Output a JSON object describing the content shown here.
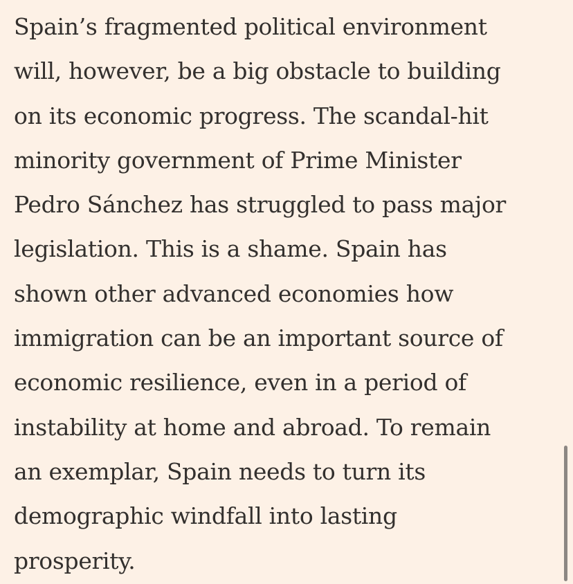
{
  "article": {
    "lines": [
      "Spain’s fragmented political environment",
      "will, however, be a big obstacle to building",
      "on its economic progress. The scandal-hit",
      "minority government of Prime Minister",
      "Pedro Sánchez has struggled to pass major",
      "legislation. This is a shame. Spain has",
      "shown other advanced economies how",
      "immigration can be an important source of",
      "economic resilience, even in a period of",
      "instability at home and abroad. To remain",
      "an exemplar, Spain needs to turn its",
      "demographic windfall into lasting",
      "prosperity."
    ]
  },
  "colors": {
    "background": "#fdf1e6",
    "text": "#33302e",
    "scrollbar": "#8c8783"
  }
}
